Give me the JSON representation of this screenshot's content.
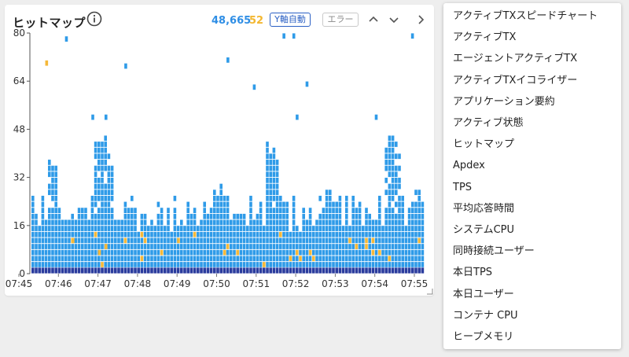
{
  "widget": {
    "title": "ヒットマップ",
    "count_total": "48,665",
    "count_error": "52",
    "y_axis_button": "Y軸自動",
    "error_button": "エラー"
  },
  "colors": {
    "normal": "#2f9be8",
    "error": "#f5b839",
    "bottom_band": "#2b3c9e",
    "accent": "#2b60c4"
  },
  "icons": {
    "info": "info-icon",
    "up": "chevron-up-icon",
    "down": "chevron-down-icon",
    "next": "chevron-right-icon",
    "resize": "resize-handle-icon"
  },
  "chart_data": {
    "type": "heatmap",
    "x_tick_labels": [
      "07:45",
      "07:46",
      "07:47",
      "07:48",
      "07:49",
      "07:50",
      "07:51",
      "07:52",
      "07:53",
      "07:54",
      "07:55"
    ],
    "y_tick_labels": [
      "0",
      "16",
      "32",
      "48",
      "64",
      "80"
    ],
    "ylim": [
      0,
      80
    ],
    "series": [
      {
        "name": "",
        "color": "#2f9be8",
        "cells": "hit counts per time bucket"
      }
    ],
    "error_cells": [
      {
        "x": "07:45:40",
        "y": 71
      },
      {
        "x": "07:46:20",
        "y": 12
      },
      {
        "x": "07:47:00",
        "y": 8
      },
      {
        "x": "07:47:10",
        "y": 10
      },
      {
        "x": "07:49:00",
        "y": 12
      },
      {
        "x": "07:50:10",
        "y": 8
      },
      {
        "x": "07:51:50",
        "y": 6
      },
      {
        "x": "07:52:20",
        "y": 8
      },
      {
        "x": "07:53:30",
        "y": 10
      },
      {
        "x": "07:54:20",
        "y": 6
      }
    ],
    "outliers": [
      {
        "x": "07:46:10",
        "y": 79
      },
      {
        "x": "07:46:50",
        "y": 53
      },
      {
        "x": "07:47:10",
        "y": 53
      },
      {
        "x": "07:47:40",
        "y": 70
      },
      {
        "x": "07:50:15",
        "y": 72
      },
      {
        "x": "07:50:55",
        "y": 63
      },
      {
        "x": "07:51:40",
        "y": 80
      },
      {
        "x": "07:51:55",
        "y": 80
      },
      {
        "x": "07:52:00",
        "y": 53
      },
      {
        "x": "07:52:15",
        "y": 64
      },
      {
        "x": "07:54:00",
        "y": 53
      },
      {
        "x": "07:54:55",
        "y": 80
      },
      {
        "x": "07:55:25",
        "y": 80
      }
    ]
  },
  "menu": {
    "items": [
      "アクティブTXスピードチャート",
      "アクティブTX",
      "エージェントアクティブTX",
      "アクティブTXイコライザー",
      "アプリケーション要約",
      "アクティブ状態",
      "ヒットマップ",
      "Apdex",
      "TPS",
      "平均応答時間",
      "システムCPU",
      "同時接続ユーザー",
      "本日TPS",
      "本日ユーザー",
      "コンテナ CPU",
      "ヒープメモリ"
    ]
  }
}
